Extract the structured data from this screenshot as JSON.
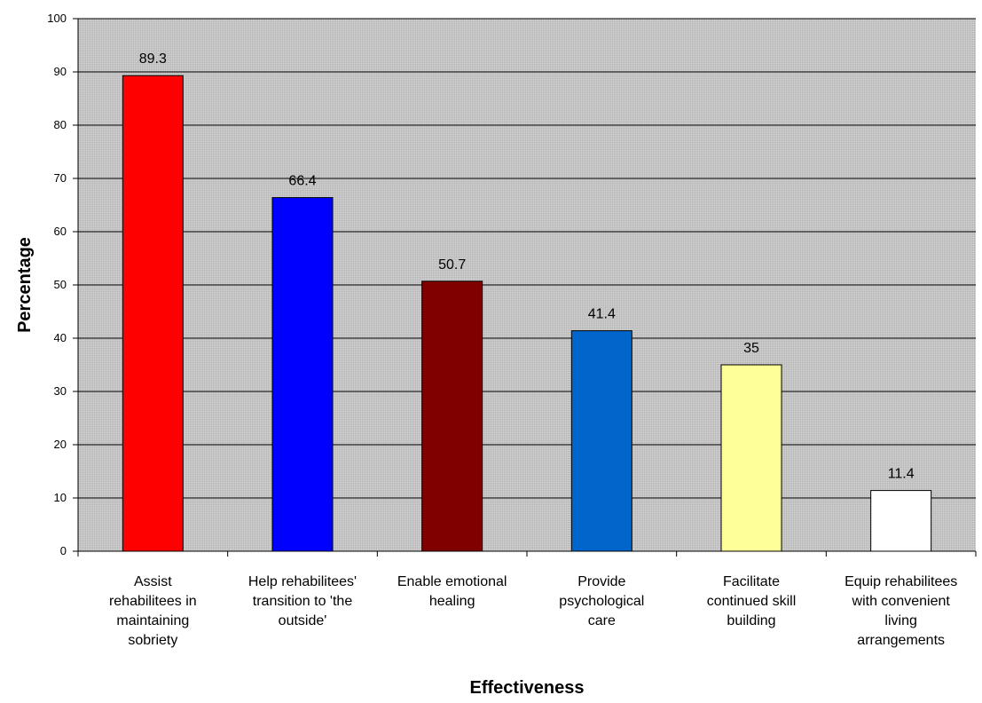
{
  "chart_data": {
    "type": "bar",
    "xlabel": "Effectiveness",
    "ylabel": "Percentage",
    "ylim": [
      0,
      100
    ],
    "ytick_step": 10,
    "yticks": [
      "0",
      "10",
      "20",
      "30",
      "40",
      "50",
      "60",
      "70",
      "80",
      "90",
      "100"
    ],
    "grid": true,
    "legend": "none",
    "plot_background": "#c0c0c0",
    "categories": [
      [
        "Assist",
        "rehabilitees in",
        "maintaining",
        "sobriety"
      ],
      [
        "Help rehabilitees'",
        "transition to 'the",
        "outside'"
      ],
      [
        "Enable emotional",
        "healing"
      ],
      [
        "Provide",
        "psychological",
        "care"
      ],
      [
        "Facilitate",
        "continued skill",
        "building"
      ],
      [
        "Equip rehabilitees",
        "with convenient",
        "living",
        "arrangements"
      ]
    ],
    "values": [
      89.3,
      66.4,
      50.7,
      41.4,
      35,
      11.4
    ],
    "value_labels": [
      "89.3",
      "66.4",
      "50.7",
      "41.4",
      "35",
      "11.4"
    ],
    "colors": [
      "#ff0000",
      "#0000ff",
      "#800000",
      "#0066cc",
      "#ffff99",
      "#ffffff"
    ]
  }
}
